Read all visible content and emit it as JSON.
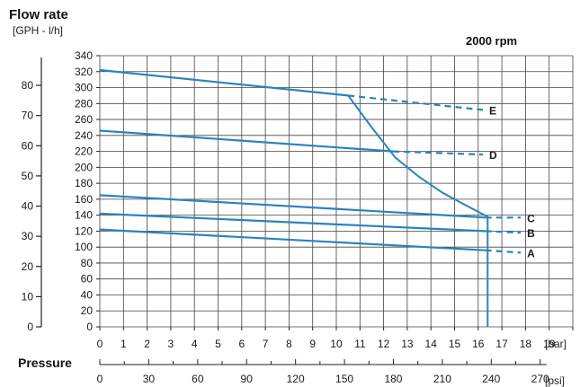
{
  "chart_data": {
    "type": "line",
    "title": "Flow rate",
    "y_unit_label": "[GPH - l/h]",
    "annotation": "2000 rpm",
    "x_bar": {
      "min": 0,
      "max": 20,
      "ticks": [
        0,
        1,
        2,
        3,
        4,
        5,
        6,
        7,
        8,
        9,
        10,
        11,
        12,
        13,
        14,
        15,
        16,
        17,
        18,
        19
      ],
      "unit": "[bar]"
    },
    "x_psi": {
      "label": "Pressure",
      "ticks": [
        0,
        30,
        60,
        90,
        120,
        150,
        180,
        210,
        240,
        270
      ],
      "unit": "[psi]"
    },
    "y_lh": {
      "min": 0,
      "max": 340,
      "ticks": [
        0,
        20,
        40,
        60,
        80,
        100,
        120,
        140,
        160,
        180,
        200,
        220,
        240,
        260,
        280,
        300,
        320,
        340
      ]
    },
    "y_gph": {
      "ticks": [
        0,
        10,
        20,
        30,
        40,
        50,
        60,
        70,
        80
      ]
    },
    "series": [
      {
        "name": "A",
        "solid": [
          [
            0,
            122
          ],
          [
            16.3,
            96
          ]
        ],
        "dashed": [
          [
            16.3,
            96
          ],
          [
            17.8,
            93
          ]
        ]
      },
      {
        "name": "B",
        "solid": [
          [
            0,
            142
          ],
          [
            16.3,
            120
          ]
        ],
        "dashed": [
          [
            16.3,
            120
          ],
          [
            17.8,
            118
          ]
        ]
      },
      {
        "name": "C",
        "solid": [
          [
            0,
            165
          ],
          [
            16.3,
            137
          ]
        ],
        "dashed": [
          [
            16.3,
            137
          ],
          [
            17.8,
            137
          ]
        ]
      },
      {
        "name": "D",
        "solid": [
          [
            0,
            246
          ],
          [
            12.4,
            220
          ]
        ],
        "dashed": [
          [
            12.4,
            220
          ],
          [
            16.2,
            216
          ]
        ]
      },
      {
        "name": "E",
        "solid": [
          [
            0,
            322
          ],
          [
            10.5,
            290
          ]
        ],
        "dashed": [
          [
            10.5,
            290
          ],
          [
            16.2,
            272
          ]
        ]
      }
    ],
    "limit_curve": [
      [
        10.5,
        290
      ],
      [
        11.5,
        250
      ],
      [
        12.5,
        212
      ],
      [
        13.5,
        188
      ],
      [
        14.5,
        168
      ],
      [
        15.5,
        152
      ],
      [
        16.4,
        138
      ],
      [
        16.4,
        0
      ]
    ]
  }
}
